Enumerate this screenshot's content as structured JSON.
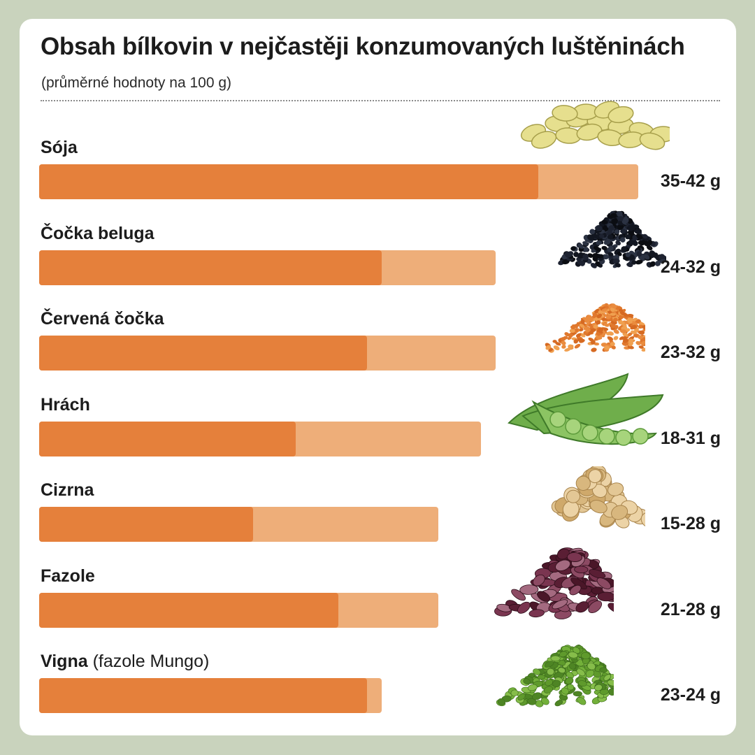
{
  "title": "Obsah bílkovin v nejčastěji konzumovaných luštěninách",
  "subtitle": "(průměrné hodnoty na 100 g)",
  "colors": {
    "background": "#c9d3bd",
    "card": "#ffffff",
    "bar_min": "#e5803b",
    "bar_max": "#eeae79"
  },
  "chart_data": {
    "type": "bar",
    "orientation": "horizontal",
    "unit": "g",
    "categories": [
      "Sója",
      "Čočka beluga",
      "Červená čočka",
      "Hrách",
      "Cizrna",
      "Fazole",
      "Vigna"
    ],
    "series": [
      {
        "values": [
          35,
          24,
          23,
          18,
          15,
          21,
          23
        ]
      },
      {
        "values": [
          42,
          32,
          32,
          31,
          28,
          28,
          24
        ]
      }
    ],
    "xlim": [
      0,
      42
    ],
    "grid": false,
    "rows": [
      {
        "label": "Sója",
        "sublabel": "",
        "min": 35,
        "max": 42,
        "value_text": "35-42 g",
        "icon": "soybeans-icon"
      },
      {
        "label": "Čočka beluga",
        "sublabel": "",
        "min": 24,
        "max": 32,
        "value_text": "24-32 g",
        "icon": "black-lentils-icon"
      },
      {
        "label": "Červená čočka",
        "sublabel": "",
        "min": 23,
        "max": 32,
        "value_text": "23-32 g",
        "icon": "red-lentils-icon"
      },
      {
        "label": "Hrách",
        "sublabel": "",
        "min": 18,
        "max": 31,
        "value_text": "18-31 g",
        "icon": "pea-pods-icon"
      },
      {
        "label": "Cizrna",
        "sublabel": "",
        "min": 15,
        "max": 28,
        "value_text": "15-28 g",
        "icon": "chickpeas-icon"
      },
      {
        "label": "Fazole",
        "sublabel": "",
        "min": 21,
        "max": 28,
        "value_text": "21-28 g",
        "icon": "kidney-beans-icon"
      },
      {
        "label": "Vigna",
        "sublabel": "(fazole Mungo)",
        "min": 23,
        "max": 24,
        "value_text": "23-24 g",
        "icon": "mung-beans-icon"
      }
    ]
  }
}
